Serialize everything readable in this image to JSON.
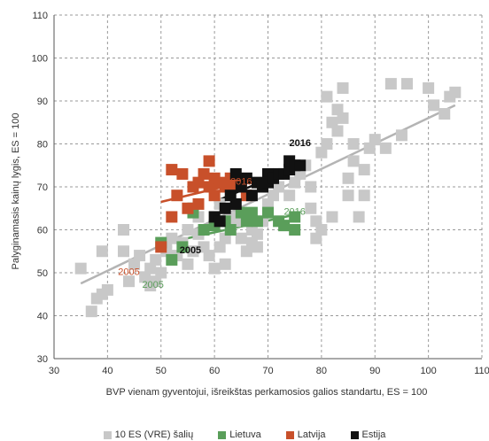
{
  "chart_data": {
    "type": "scatter",
    "xlabel": "BVP vienam gyventojui, išreikštas perkamosios galios standartu, ES = 100",
    "ylabel": "Palyginamasis kainų lygis, ES = 100",
    "xlim": [
      30,
      110
    ],
    "ylim": [
      30,
      110
    ],
    "xticks": [
      30,
      40,
      50,
      60,
      70,
      80,
      90,
      100,
      110
    ],
    "yticks": [
      30,
      40,
      50,
      60,
      70,
      80,
      90,
      100,
      110
    ],
    "grid": "dashed-horizontal-and-vertical",
    "legend_position": "bottom",
    "series": [
      {
        "name": "10 ES (VRE) šalių",
        "color": "#c8c8c8",
        "points": [
          [
            35,
            51
          ],
          [
            37,
            41
          ],
          [
            38,
            44
          ],
          [
            39,
            45
          ],
          [
            40,
            46
          ],
          [
            39,
            55
          ],
          [
            43,
            55
          ],
          [
            43,
            60
          ],
          [
            44,
            48
          ],
          [
            45,
            52
          ],
          [
            46,
            54
          ],
          [
            47,
            49
          ],
          [
            48,
            47
          ],
          [
            48,
            51
          ],
          [
            49,
            48
          ],
          [
            49,
            53
          ],
          [
            50,
            50
          ],
          [
            51,
            55
          ],
          [
            51,
            57
          ],
          [
            52,
            58
          ],
          [
            53,
            54
          ],
          [
            54,
            57
          ],
          [
            55,
            60
          ],
          [
            55,
            52
          ],
          [
            56,
            55
          ],
          [
            57,
            59
          ],
          [
            58,
            56
          ],
          [
            59,
            54
          ],
          [
            60,
            51
          ],
          [
            61,
            56
          ],
          [
            62,
            58
          ],
          [
            63,
            60
          ],
          [
            63,
            63
          ],
          [
            64,
            62
          ],
          [
            65,
            58
          ],
          [
            66,
            55
          ],
          [
            67,
            57
          ],
          [
            68,
            56
          ],
          [
            68,
            59
          ],
          [
            69,
            62
          ],
          [
            70,
            64
          ],
          [
            70,
            66
          ],
          [
            71,
            68
          ],
          [
            72,
            70
          ],
          [
            73,
            73
          ],
          [
            74,
            76
          ],
          [
            75,
            71
          ],
          [
            76,
            73
          ],
          [
            77,
            75
          ],
          [
            78,
            70
          ],
          [
            78,
            65
          ],
          [
            79,
            58
          ],
          [
            79,
            62
          ],
          [
            80,
            78
          ],
          [
            81,
            80
          ],
          [
            81,
            91
          ],
          [
            82,
            85
          ],
          [
            82,
            63
          ],
          [
            83,
            88
          ],
          [
            83,
            83
          ],
          [
            84,
            86
          ],
          [
            84,
            93
          ],
          [
            85,
            68
          ],
          [
            85,
            72
          ],
          [
            86,
            76
          ],
          [
            86,
            80
          ],
          [
            87,
            63
          ],
          [
            88,
            68
          ],
          [
            88,
            74
          ],
          [
            89,
            79
          ],
          [
            90,
            81
          ],
          [
            92,
            79
          ],
          [
            93,
            94
          ],
          [
            95,
            82
          ],
          [
            96,
            94
          ],
          [
            100,
            93
          ],
          [
            101,
            89
          ],
          [
            103,
            87
          ],
          [
            104,
            91
          ],
          [
            105,
            92
          ],
          [
            57,
            63
          ],
          [
            61,
            66
          ],
          [
            74,
            68
          ],
          [
            80,
            60
          ],
          [
            62,
            52
          ],
          [
            67,
            60
          ]
        ]
      },
      {
        "name": "Lietuva",
        "color": "#5a9e5a",
        "points": [
          [
            50,
            57
          ],
          [
            52,
            53
          ],
          [
            54,
            56
          ],
          [
            56,
            64
          ],
          [
            58,
            60
          ],
          [
            60,
            61
          ],
          [
            62,
            62
          ],
          [
            63,
            60
          ],
          [
            65,
            64
          ],
          [
            66,
            62
          ],
          [
            67,
            64
          ],
          [
            70,
            64
          ],
          [
            72,
            62
          ],
          [
            73,
            61
          ],
          [
            75,
            63
          ],
          [
            75,
            60
          ],
          [
            56,
            65
          ],
          [
            68,
            62
          ]
        ]
      },
      {
        "name": "Latvija",
        "color": "#c8502a",
        "points": [
          [
            50,
            56
          ],
          [
            52,
            63
          ],
          [
            52,
            74
          ],
          [
            53,
            68
          ],
          [
            54,
            73
          ],
          [
            55,
            65
          ],
          [
            56,
            70
          ],
          [
            57,
            66
          ],
          [
            57,
            71
          ],
          [
            58,
            73
          ],
          [
            59,
            76
          ],
          [
            59,
            70
          ],
          [
            60,
            68
          ],
          [
            60,
            72
          ],
          [
            61,
            71
          ],
          [
            62,
            70
          ],
          [
            63,
            72
          ],
          [
            64,
            70
          ],
          [
            65,
            71
          ],
          [
            66,
            68
          ]
        ]
      },
      {
        "name": "Estija",
        "color": "#111111",
        "points": [
          [
            60,
            63
          ],
          [
            61,
            62
          ],
          [
            62,
            65
          ],
          [
            63,
            68
          ],
          [
            64,
            73
          ],
          [
            64,
            66
          ],
          [
            65,
            70
          ],
          [
            66,
            72
          ],
          [
            67,
            68
          ],
          [
            68,
            71
          ],
          [
            69,
            70
          ],
          [
            70,
            73
          ],
          [
            70,
            71
          ],
          [
            71,
            72
          ],
          [
            72,
            73
          ],
          [
            73,
            73
          ],
          [
            74,
            74
          ],
          [
            74,
            76
          ],
          [
            75,
            75
          ],
          [
            76,
            75
          ]
        ]
      }
    ],
    "trend_lines": [
      {
        "series": "10 ES (VRE) šalių",
        "color": "#b4b4b4",
        "from": [
          35,
          47.5
        ],
        "to": [
          105,
          89
        ]
      },
      {
        "series": "Lietuva",
        "color": "#5a9e5a",
        "from": [
          53,
          57.5
        ],
        "to": [
          75,
          63.5
        ]
      },
      {
        "series": "Latvija",
        "color": "#c8502a",
        "from": [
          50,
          66.5
        ],
        "to": [
          65,
          71
        ]
      },
      {
        "series": "Estija",
        "color": "#111111",
        "from": [
          60,
          66.5
        ],
        "to": [
          76,
          75
        ]
      }
    ],
    "annotations": [
      {
        "text": "2005",
        "x": 44,
        "y": 49.5,
        "color": "#c8502a"
      },
      {
        "text": "2005",
        "x": 48.5,
        "y": 46.5,
        "color": "#5a9e5a"
      },
      {
        "text": "2005",
        "x": 55.5,
        "y": 54.5,
        "color": "#111111"
      },
      {
        "text": "2016",
        "x": 65,
        "y": 70.5,
        "color": "#c8502a"
      },
      {
        "text": "2016",
        "x": 75,
        "y": 63.5,
        "color": "#5a9e5a"
      },
      {
        "text": "2016",
        "x": 76,
        "y": 79.5,
        "color": "#111111"
      }
    ]
  }
}
